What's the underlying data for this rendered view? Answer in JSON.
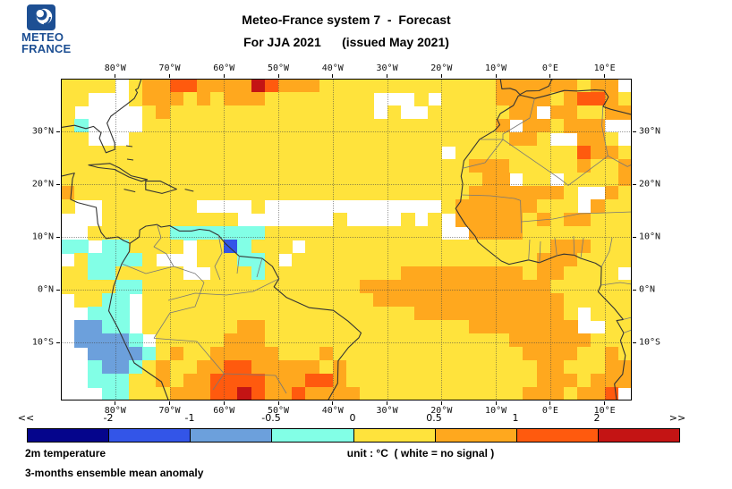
{
  "header": {
    "logo_line1": "METEO",
    "logo_line2": "FRANCE",
    "title_line1": "Meteo-France system 7  -  Forecast",
    "title_line2": "For JJA 2021      (issued May 2021)"
  },
  "footer": {
    "variable": "2m temperature",
    "statistic": "3-months ensemble mean anomaly",
    "unit_label": "unit : °C  ( white = no signal )"
  },
  "chart_data": {
    "type": "heatmap",
    "title": "Meteo-France system 7 - Forecast",
    "subtitle": "For JJA 2021 (issued May 2021)",
    "variable": "2m temperature",
    "statistic": "3-months ensemble mean anomaly",
    "unit": "°C",
    "no_signal": "white = no signal",
    "lon_range": [
      -90,
      15
    ],
    "lat_range": [
      40,
      -21
    ],
    "lon_tick_values": [
      -80,
      -70,
      -60,
      -50,
      -40,
      -30,
      -20,
      -10,
      0,
      10
    ],
    "lon_tick_labels": [
      "80°W",
      "70°W",
      "60°W",
      "50°W",
      "40°W",
      "30°W",
      "20°W",
      "10°W",
      "0°E",
      "10°E"
    ],
    "lat_tick_values": [
      30,
      20,
      10,
      0,
      -10
    ],
    "lat_tick_labels": [
      "30°N",
      "20°N",
      "10°N",
      "0°N",
      "10°S"
    ],
    "grid_on": true,
    "colorbar": {
      "left_arrow": "<<",
      "right_arrow": ">>",
      "tick_labels": [
        "-2",
        "-1",
        "-0.5",
        "0",
        "0.5",
        "1",
        "2"
      ],
      "colors": [
        "#05058C",
        "#3355E8",
        "#6CA0DC",
        "#82FFE6",
        "#FFE33C",
        "#FFA81E",
        "#FF5A0E",
        "#C41414"
      ]
    },
    "palette": {
      "N": "#05058C",
      "B": "#3355E8",
      "S": "#6CA0DC",
      "C": "#82FFE6",
      "Y": "#FFE33C",
      "O": "#FFA81E",
      "R": "#FF5A0E",
      "D": "#C41414",
      "W": "#FFFFFF"
    },
    "code_meaning": {
      "N": "< -2",
      "B": "-2 to -1",
      "S": "-1 to -0.5",
      "C": "-0.5 to 0",
      "Y": "0 to 0.5",
      "O": "0.5 to 1",
      "R": "1 to 2",
      "D": "> 2",
      "W": "no signal (white)"
    },
    "grid": {
      "cols": 42,
      "rows": 24,
      "cell_size_deg": 2.5,
      "cells": [
        "YYYYWYOORROOOODROOOYYYYYYYYYYYYYOOOOOOYOOW",
        "YYWWWYOOOYOYOOOYYYYYYYYWWWYWYYYYOOOOYORROY",
        "YWWWWWYOYYYYYYYYYYYYYYYWYWWYYYYYYOOWOOYYOO",
        "YCWWWWYYYYYYYYYYYYYYYYYYYYYYYYYYOWOOYOOOWW",
        "YYWWWYYYYYYYYYYYYYYYYYYYYYYYYYYYYOOYWWOOYW",
        "YYYYYYYYYYYYYYYYYYYYYYYYYYYYWYYYYYYYYYROOY",
        "YYYYYYYYYYYYYYYYYYYYYYYYYYYYYYOOOYYYYYOYYO",
        "YYYYYYYYYYYYYYYYYYYYYYYYYYYYYYYOOWYYWYYYYO",
        "OYYYYYYYYYYYYYYYYYYYYYYYYYYYYYOOOOOOOYWWOY",
        "YWWYYYYYYYWWWWYWWWWWWWWWWWWWYOOOOOOYYYWOYY",
        "WWWYYYYYYYYYYWWWWWWWYWWWWYWYWOOOOOYOYOOYYY",
        "WWYYYYYYCCCCCCCYYYYYYYYYYYYYWWOOOOYYYYYYYY",
        "CCWCCYYYYWYYBCYYYWYYYYYYYYYYYYYYYYYYOOOYYY",
        "WYCCCCYWWWYYYCCYWYYYYYYYYYYYYYYYYYYOOOYYYY",
        "YYCCYYYYYWWYYYCYYYYYYYYYYOOOOOOOOOYOOYYYYW",
        "YYYYCCYYYYYYYYYYYYYYYYOOOOOOOOOOOOOOYYYYYY",
        "WYYCCWYYYYYYYYYYYYYYYYYOOOOOOOOOOOOOOYYYYY",
        "WWCCCWYYYYYYYYYYYYYYYYYYYYOOOOOOOOOOOYWYYY",
        "WSSCCWYYYYYYYOOYYYYYYYYYYYYYYYOOOOOOOOWWYY",
        "WSSSSCWYYYYYOOOYYYYYYYYYYYYYYYYYYOOOOOOYYY",
        "WWSSSSCYOYYOOOOOYYYOYYYYYYYYYYYYYYOOOOYYOY",
        "WWCSSCYOYYOORROOOOOYOYYYYYYYYYYYYYYOOYYYOO",
        "WWCCCYYOYOORRRROOORROYYYYYYYYYYYYYYOOOYOOO",
        "WWWCCYYYOOORRDROOROOOOYYYYYYYYYYYYOOOYOORW"
      ]
    }
  }
}
